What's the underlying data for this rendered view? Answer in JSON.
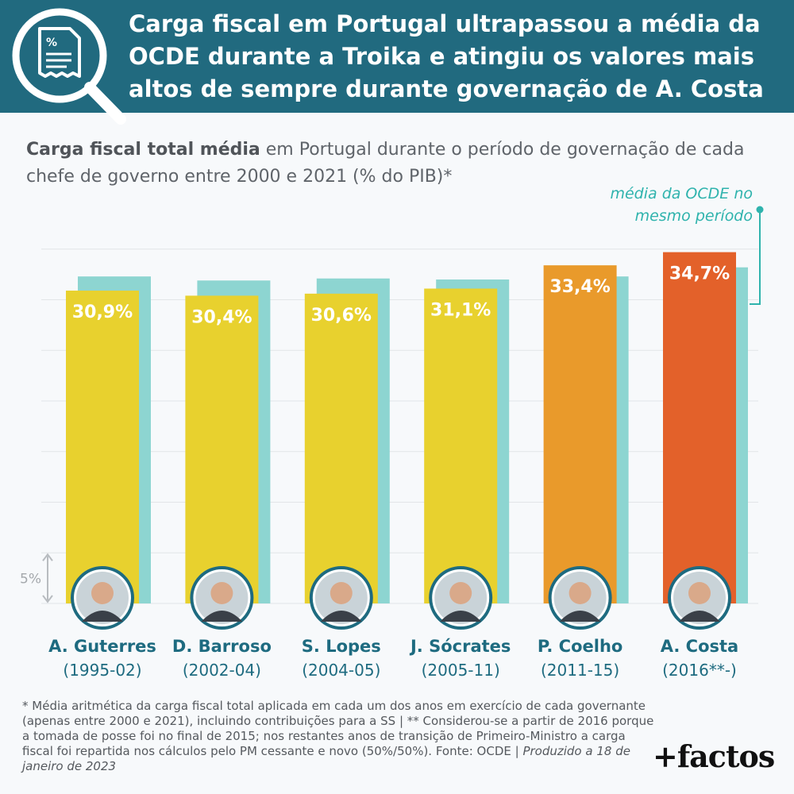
{
  "header": {
    "title": "Carga fiscal em Portugal ultrapassou a média da OCDE durante a Troika e atingiu os valores mais altos de sempre durante governação de A. Costa"
  },
  "subtitle": {
    "bold": "Carga fiscal total média",
    "rest": " em Portugal durante o período de governação de cada chefe de governo entre 2000 e 2021 (% do PIB)*"
  },
  "oecd_note": "média da OCDE no mesmo período",
  "colors": {
    "header": "#216a7f",
    "yellow": "#e8d12e",
    "orange": "#e99a2b",
    "red": "#e3612a",
    "oecd": "#8dd5d1",
    "name": "#1e6b80"
  },
  "chart_data": {
    "type": "bar",
    "scale_label": "5%",
    "categories": [
      "A. Guterres",
      "D. Barroso",
      "S. Lopes",
      "J. Sócrates",
      "P. Coelho",
      "A. Costa"
    ],
    "periods": [
      "(1995-02)",
      "(2002-04)",
      "(2004-05)",
      "(2005-11)",
      "(2011-15)",
      "(2016**-)"
    ],
    "series": [
      {
        "values": [
          30.9,
          30.4,
          30.6,
          31.1,
          33.4,
          34.7
        ],
        "labels": [
          "30,9%",
          "30,4%",
          "30,6%",
          "31,1%",
          "33,4%",
          "34,7%"
        ],
        "colors": [
          "#e8d12e",
          "#e8d12e",
          "#e8d12e",
          "#e8d12e",
          "#e99a2b",
          "#e3612a"
        ]
      },
      {
        "values": [
          32.3,
          31.9,
          32.1,
          32.0,
          32.3,
          33.2
        ],
        "color": "#8dd5d1"
      }
    ],
    "ylim": [
      0,
      35
    ],
    "grid": true
  },
  "footnote": {
    "text": "* Média aritmética da carga fiscal total aplicada em cada um dos anos em exercício de cada governante (apenas entre 2000 e 2021), incluindo contribuições para a SS | ** Considerou-se a partir de 2016 porque a tomada de posse foi no final de 2015; nos restantes anos de transição de Primeiro-Ministro a carga fiscal foi repartida nos cálculos pelo PM cessante e novo (50%/50%). Fonte: OCDE | ",
    "produced": "Produzido a 18 de janeiro de 2023"
  },
  "logo": "+factos"
}
